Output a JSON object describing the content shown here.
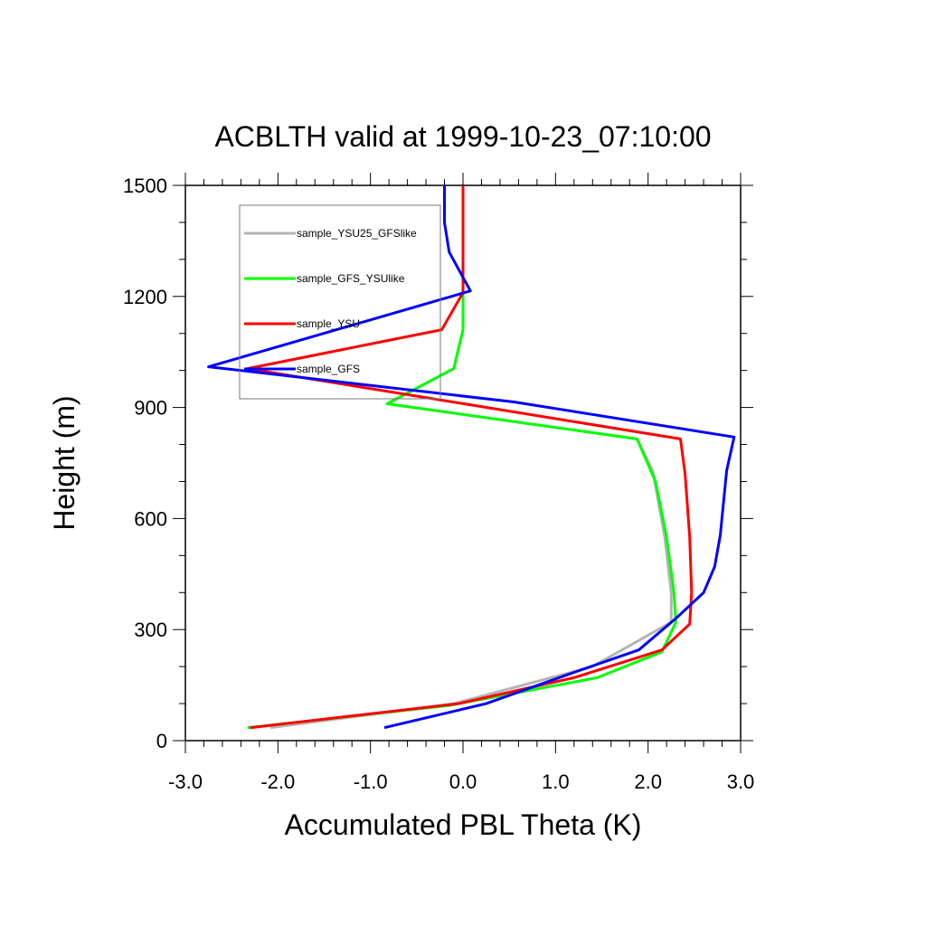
{
  "chart_data": {
    "type": "line",
    "title": "ACBLTH valid at 1999-10-23_07:10:00",
    "xlabel": "Accumulated PBL Theta (K)",
    "ylabel": "Height (m)",
    "xlim": [
      -3.0,
      3.0
    ],
    "ylim": [
      0,
      1500
    ],
    "x_ticks": [
      -3.0,
      -2.0,
      -1.0,
      0.0,
      1.0,
      2.0,
      3.0
    ],
    "x_tick_labels": [
      "-3.0",
      "-2.0",
      "-1.0",
      "0.0",
      "1.0",
      "2.0",
      "3.0"
    ],
    "y_ticks": [
      0,
      300,
      600,
      900,
      1200,
      1500
    ],
    "y_tick_labels": [
      "0",
      "300",
      "600",
      "900",
      "1200",
      "1500"
    ],
    "grid": false,
    "legend_position": "top-left",
    "series": [
      {
        "name": "sample_YSU25_GFSlike",
        "color": "#b4b4b4",
        "points": [
          [
            -2.08,
            35
          ],
          [
            -0.1,
            100
          ],
          [
            1.4,
            200
          ],
          [
            2.25,
            320
          ],
          [
            2.25,
            400
          ],
          [
            2.18,
            550
          ],
          [
            2.05,
            730
          ],
          [
            1.88,
            815
          ],
          [
            -0.82,
            910
          ],
          [
            -0.1,
            1005
          ],
          [
            0.0,
            1110
          ],
          [
            0.0,
            1500
          ]
        ]
      },
      {
        "name": "sample_GFS_YSUlike",
        "color": "#00ff00",
        "points": [
          [
            -2.33,
            35
          ],
          [
            -0.15,
            95
          ],
          [
            1.45,
            170
          ],
          [
            2.15,
            240
          ],
          [
            2.3,
            320
          ],
          [
            2.28,
            400
          ],
          [
            2.2,
            550
          ],
          [
            2.08,
            700
          ],
          [
            1.88,
            815
          ],
          [
            -0.82,
            910
          ],
          [
            -0.1,
            1005
          ],
          [
            0.0,
            1110
          ],
          [
            0.0,
            1500
          ]
        ]
      },
      {
        "name": "sample_YSU",
        "color": "#ff0000",
        "points": [
          [
            -2.3,
            35
          ],
          [
            -0.05,
            100
          ],
          [
            1.2,
            170
          ],
          [
            2.15,
            245
          ],
          [
            2.45,
            315
          ],
          [
            2.47,
            400
          ],
          [
            2.45,
            550
          ],
          [
            2.4,
            720
          ],
          [
            2.35,
            815
          ],
          [
            -2.33,
            1005
          ],
          [
            -0.23,
            1110
          ],
          [
            0.0,
            1210
          ],
          [
            0.0,
            1500
          ]
        ]
      },
      {
        "name": "sample_GFS",
        "color": "#0000ff",
        "points": [
          [
            -0.85,
            35
          ],
          [
            0.25,
            100
          ],
          [
            1.15,
            180
          ],
          [
            1.9,
            245
          ],
          [
            2.3,
            330
          ],
          [
            2.6,
            400
          ],
          [
            2.72,
            470
          ],
          [
            2.78,
            555
          ],
          [
            2.85,
            730
          ],
          [
            2.93,
            820
          ],
          [
            0.55,
            915
          ],
          [
            -2.75,
            1010
          ],
          [
            0.08,
            1215
          ],
          [
            -0.15,
            1320
          ],
          [
            -0.2,
            1400
          ],
          [
            -0.2,
            1500
          ]
        ]
      }
    ]
  }
}
